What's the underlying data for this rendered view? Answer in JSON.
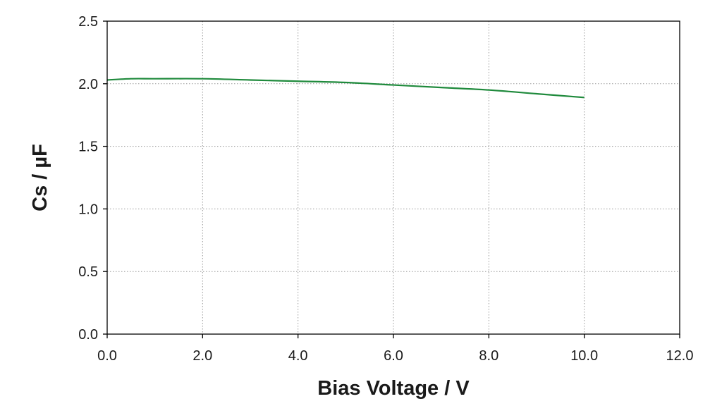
{
  "chart_data": {
    "type": "line",
    "title": "",
    "xlabel": "Bias Voltage / V",
    "ylabel": "Cs / µF",
    "xlim": [
      0,
      12
    ],
    "ylim": [
      0,
      2.5
    ],
    "x_ticks": [
      "0.0",
      "2.0",
      "4.0",
      "6.0",
      "8.0",
      "10.0",
      "12.0"
    ],
    "y_ticks": [
      "0.0",
      "0.5",
      "1.0",
      "1.5",
      "2.0",
      "2.5"
    ],
    "grid": true,
    "legend": "none",
    "series": [
      {
        "color": "#1f8a3c",
        "x": [
          0,
          0.5,
          1,
          2,
          3,
          4,
          5,
          6,
          7,
          8,
          9,
          10
        ],
        "y": [
          2.03,
          2.04,
          2.04,
          2.04,
          2.03,
          2.02,
          2.01,
          1.99,
          1.97,
          1.95,
          1.92,
          1.89
        ]
      }
    ]
  }
}
